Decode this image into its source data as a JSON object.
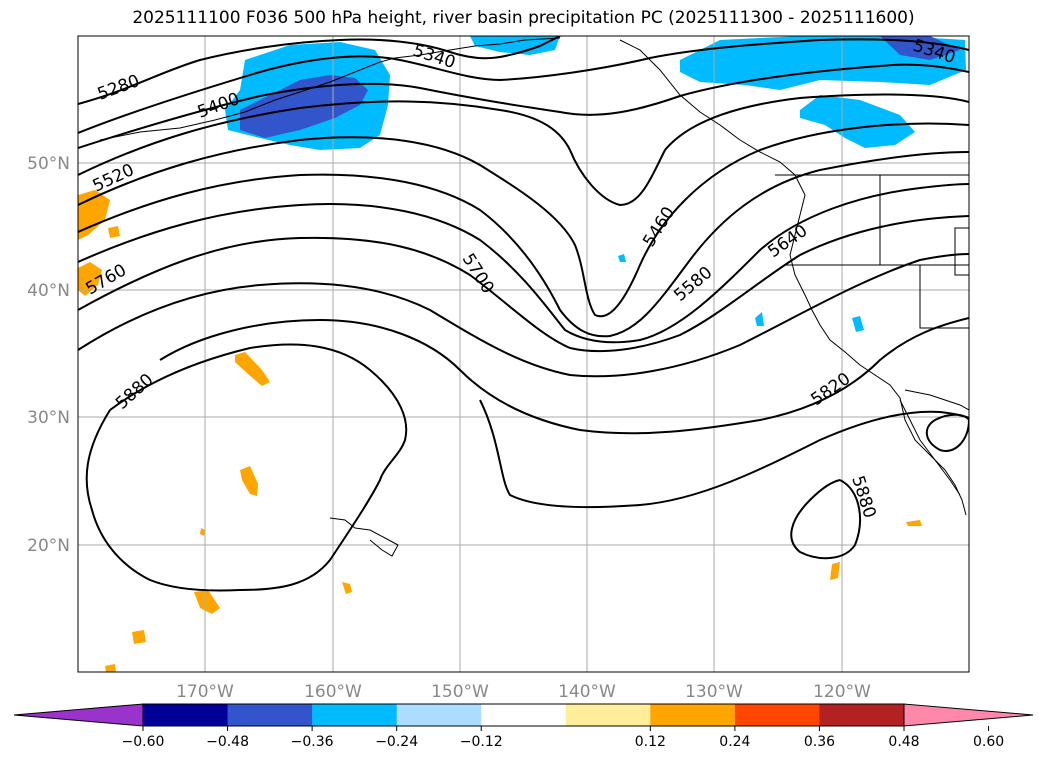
{
  "title": "2025111100 F036 500 hPa height, river basin precipitation PC (2025111300 - 2025111600)",
  "map": {
    "lon_labels": [
      "170°W",
      "160°W",
      "150°W",
      "140°W",
      "130°W",
      "120°W"
    ],
    "lat_labels": [
      "50°N",
      "40°N",
      "30°N",
      "20°N"
    ],
    "contour_labels": [
      "5280",
      "5340",
      "5340",
      "5400",
      "5460",
      "5520",
      "5580",
      "5640",
      "5700",
      "5760",
      "5820",
      "5880",
      "5880"
    ],
    "grid": true
  },
  "colorbar": {
    "ticks": [
      "−0.60",
      "−0.48",
      "−0.36",
      "−0.24",
      "−0.12",
      "0.12",
      "0.24",
      "0.36",
      "0.48",
      "0.60"
    ],
    "colors": [
      "#9933cc",
      "#000099",
      "#3355cc",
      "#00bbff",
      "#aaddff",
      "#ffffff",
      "#ffee99",
      "#ffa500",
      "#ff4500",
      "#b22222",
      "#ff88aa"
    ],
    "extend": "both"
  }
}
